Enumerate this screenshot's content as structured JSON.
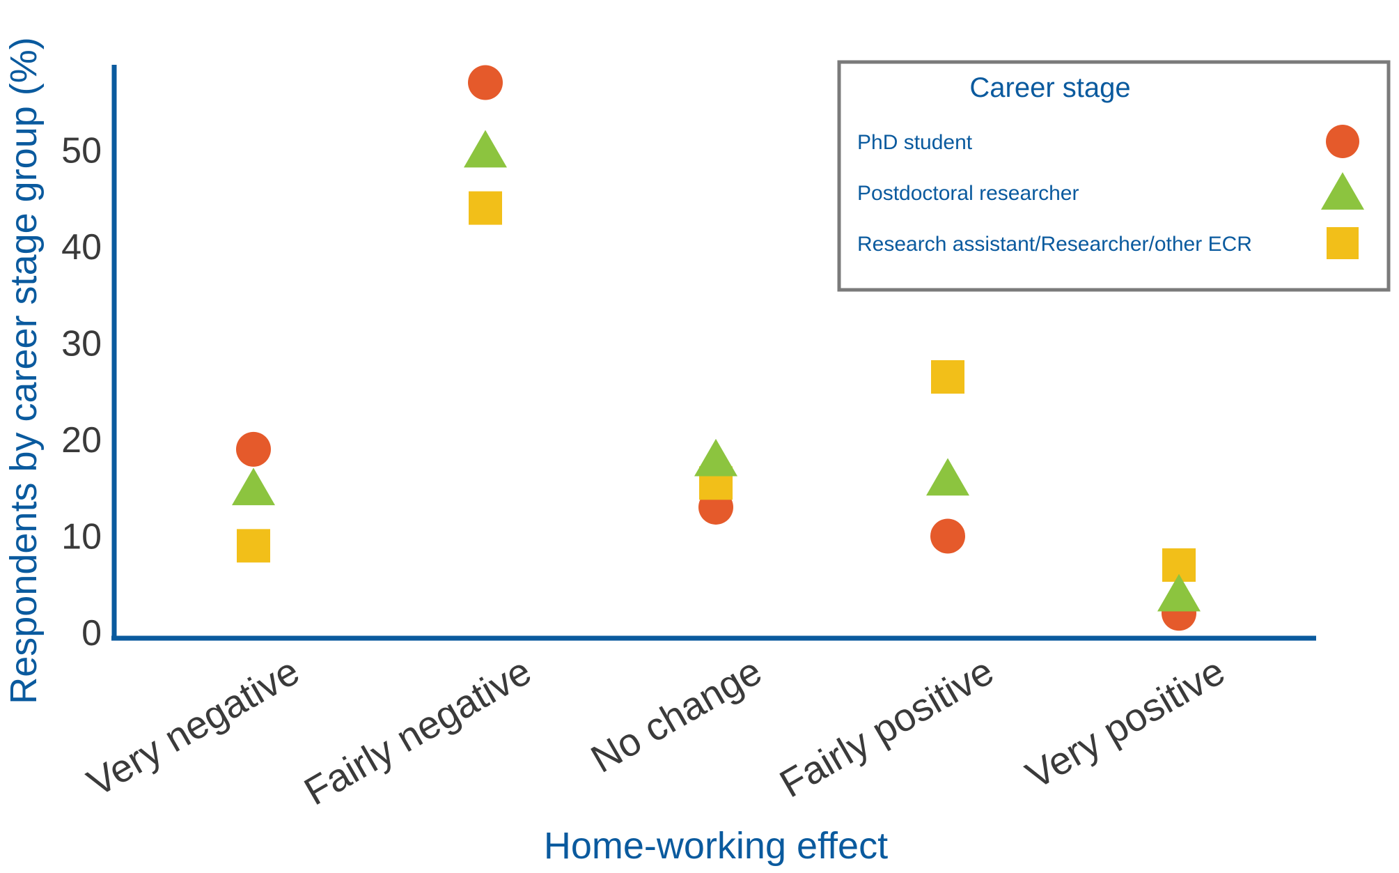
{
  "chart_data": {
    "type": "scatter",
    "title": "",
    "xlabel": "Home-working effect",
    "ylabel": "Respondents by career stage group (%)",
    "categories": [
      "Very negative",
      "Fairly negative",
      "No change",
      "Fairly positive",
      "Very positive"
    ],
    "ylim": [
      0,
      60
    ],
    "yticks": [
      0,
      10,
      20,
      30,
      40,
      50
    ],
    "grid": false,
    "legend": {
      "title": "Career stage",
      "placement": "top-right"
    },
    "series": [
      {
        "name": "PhD student",
        "marker": "circle",
        "color": "#e55a2b",
        "values": [
          19,
          57,
          13,
          10,
          2
        ]
      },
      {
        "name": "Postdoctoral researcher",
        "marker": "triangle",
        "color": "#8cc43f",
        "values": [
          15,
          50,
          18,
          16,
          4
        ]
      },
      {
        "name": "Research assistant/Researcher/other ECR",
        "marker": "square",
        "color": "#f2bf19",
        "values": [
          9,
          44,
          15.5,
          26.5,
          7
        ]
      }
    ],
    "colors": {
      "axis": "#0a5a9e",
      "tick_text": "#3a3a3a",
      "legend_border": "#7a7a7a"
    }
  }
}
